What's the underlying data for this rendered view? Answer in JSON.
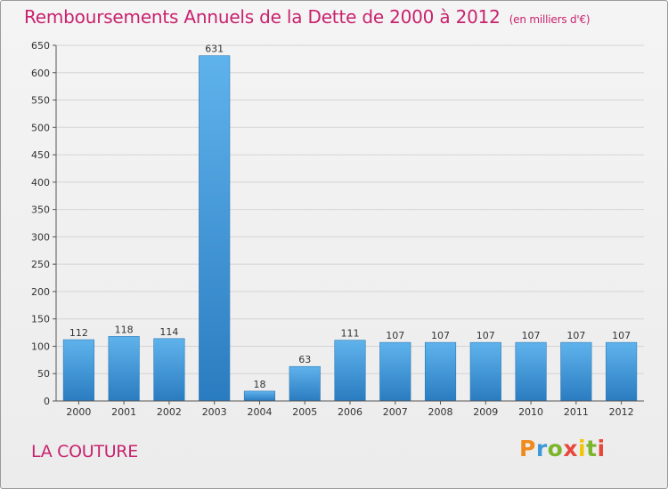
{
  "chart_data": {
    "type": "bar",
    "title": "Remboursements Annuels de la Dette de 2000 à 2012",
    "subtitle": "(en milliers d'€)",
    "categories": [
      "2000",
      "2001",
      "2002",
      "2003",
      "2004",
      "2005",
      "2006",
      "2007",
      "2008",
      "2009",
      "2010",
      "2011",
      "2012"
    ],
    "values": [
      112,
      118,
      114,
      631,
      18,
      63,
      111,
      107,
      107,
      107,
      107,
      107,
      107
    ],
    "ylim": [
      0,
      650
    ],
    "yticks": [
      0,
      50,
      100,
      150,
      200,
      250,
      300,
      350,
      400,
      450,
      500,
      550,
      600,
      650
    ],
    "grid": "horizontal",
    "bar_color": "#3f98d9"
  },
  "footer": {
    "commune": "LA COUTURE",
    "logo": "Proxiti"
  },
  "colors": {
    "accent": "#c8226e"
  }
}
